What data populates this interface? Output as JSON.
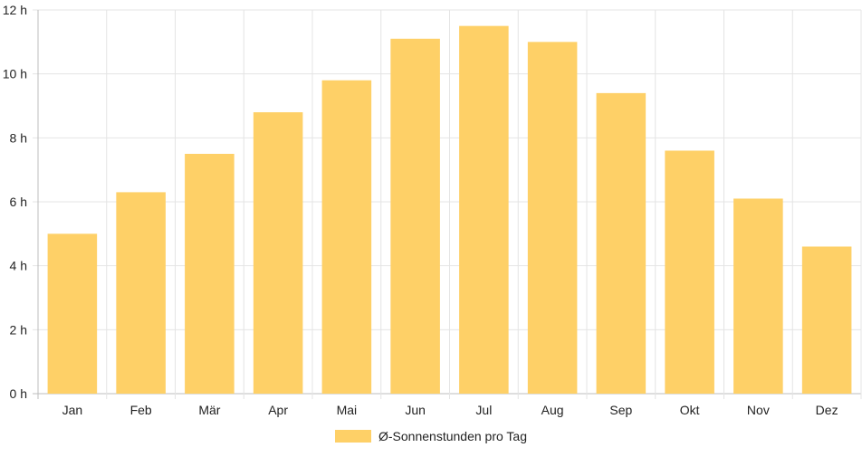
{
  "chart_data": {
    "type": "bar",
    "categories": [
      "Jan",
      "Feb",
      "Mär",
      "Apr",
      "Mai",
      "Jun",
      "Jul",
      "Aug",
      "Sep",
      "Okt",
      "Nov",
      "Dez"
    ],
    "series": [
      {
        "name": "Ø-Sonnenstunden pro Tag",
        "values": [
          5.0,
          6.3,
          7.5,
          8.8,
          9.8,
          11.1,
          11.5,
          11.0,
          9.4,
          7.6,
          6.1,
          4.6
        ],
        "color": "#fed067"
      }
    ],
    "ylim": [
      0,
      12
    ],
    "y_ticks": [
      0,
      2,
      4,
      6,
      8,
      10,
      12
    ],
    "y_tick_suffix": " h",
    "grid": true,
    "legend_position": "bottom-center"
  }
}
